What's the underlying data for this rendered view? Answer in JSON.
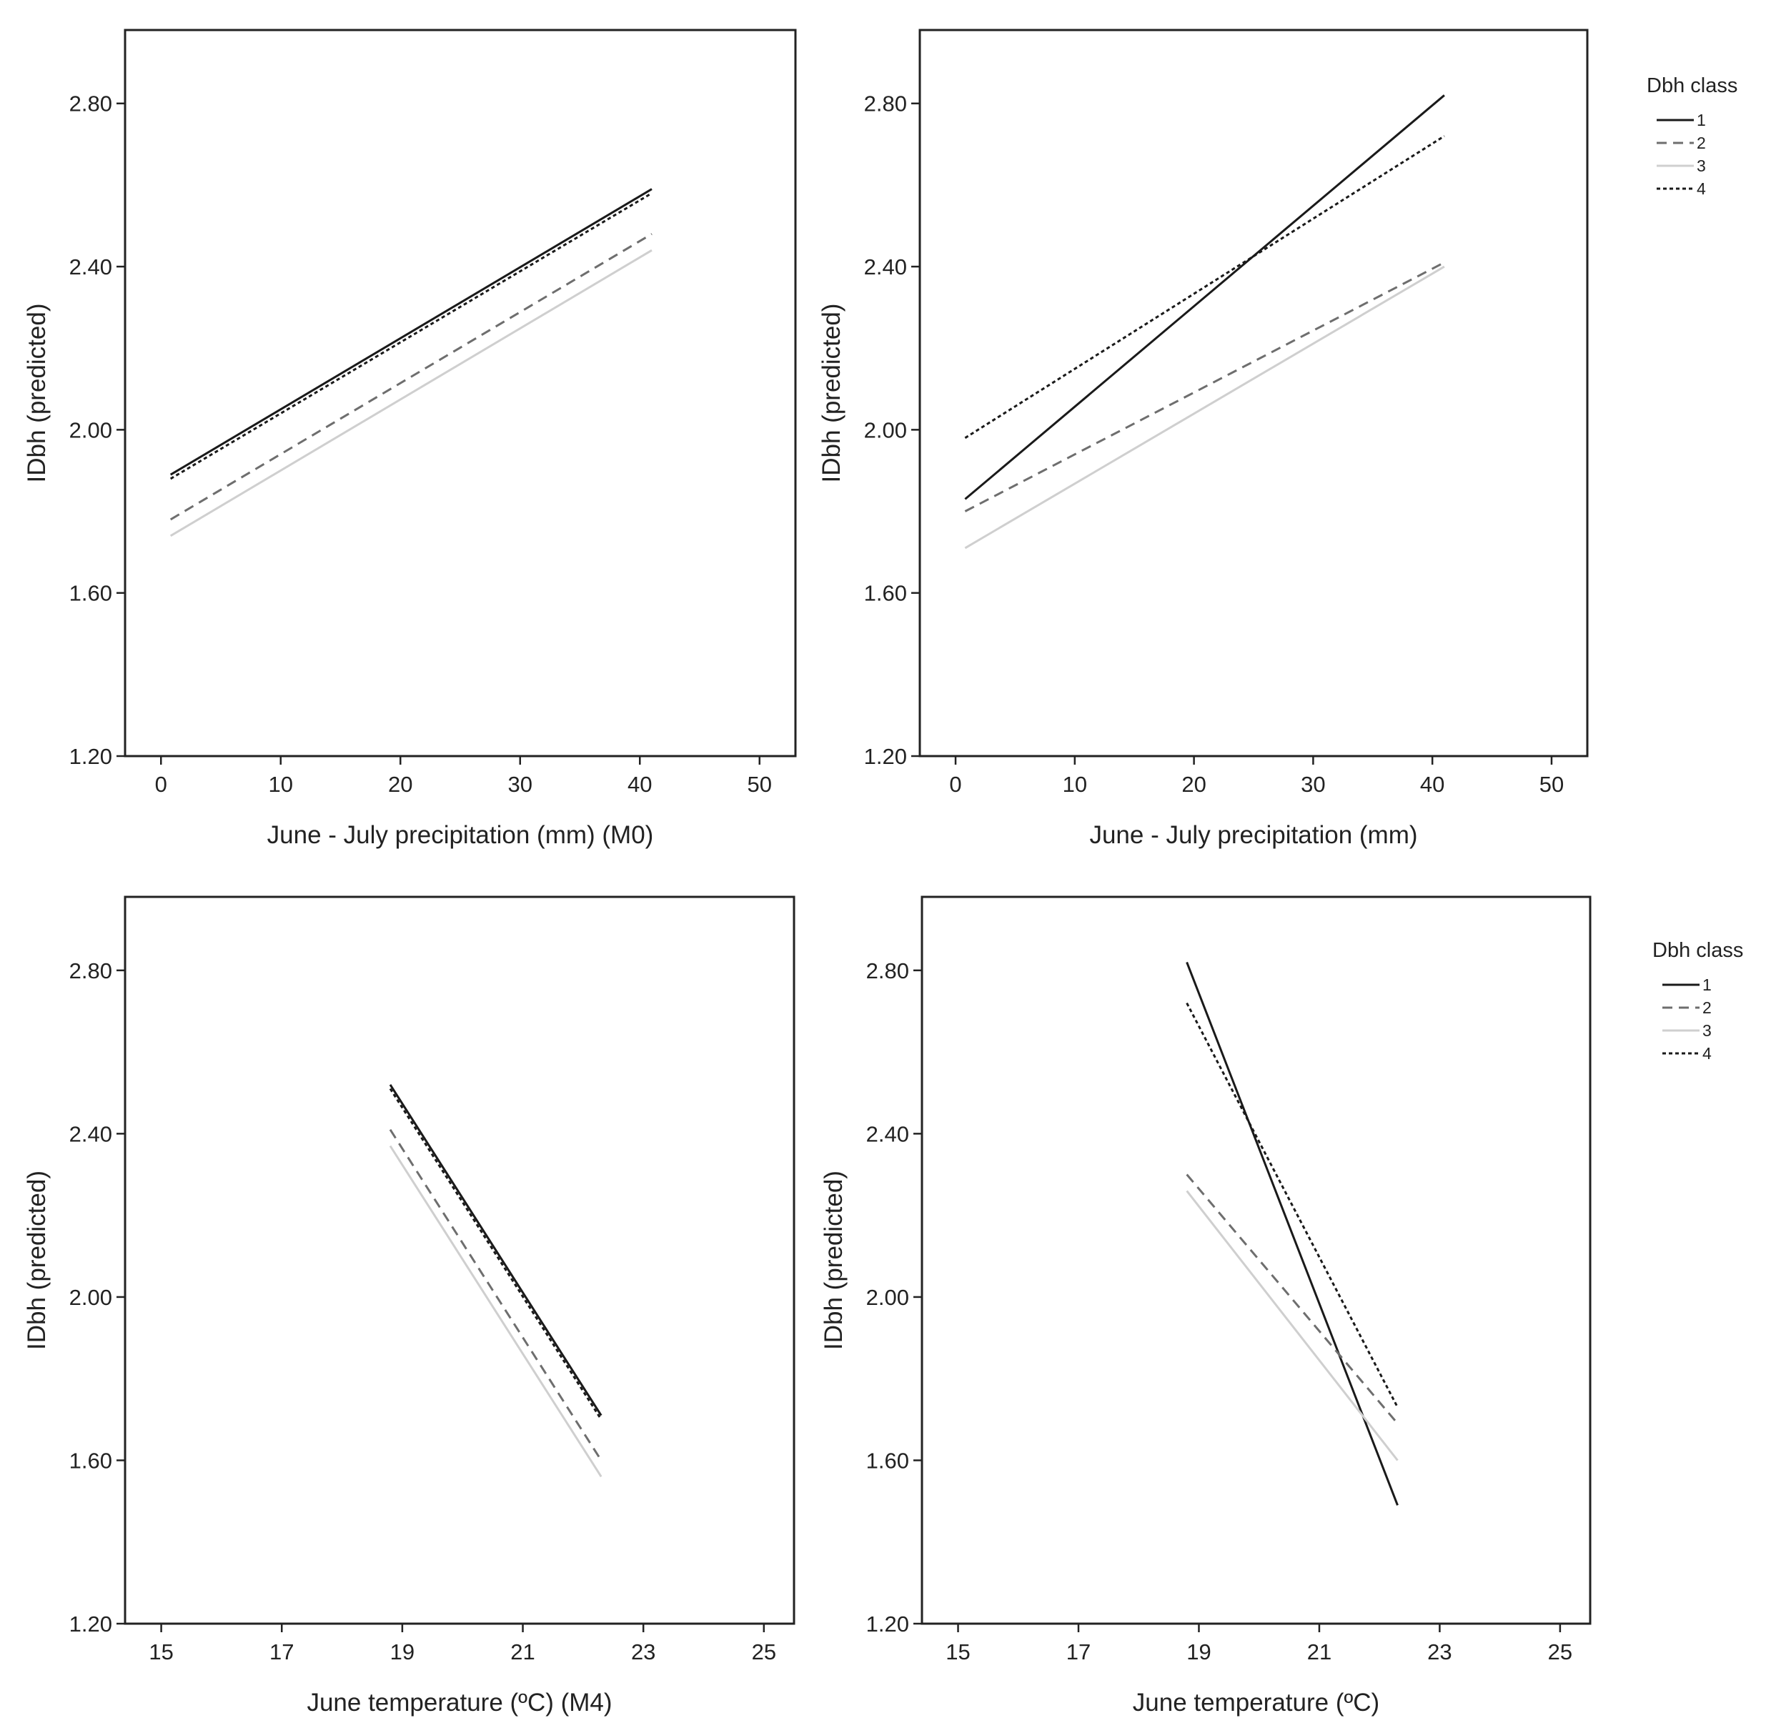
{
  "series_styles": [
    {
      "color": "#1a1a1a",
      "dash": "",
      "width": 3
    },
    {
      "color": "#6e6e6e",
      "dash": "14 9",
      "width": 3
    },
    {
      "color": "#cfcfcf",
      "dash": "",
      "width": 3
    },
    {
      "color": "#1a1a1a",
      "dash": "5 4",
      "width": 3
    }
  ],
  "legends": [
    {
      "panel": 1,
      "title": "Dbh class",
      "labels": [
        "1",
        "2",
        "3",
        "4"
      ]
    },
    {
      "panel": 3,
      "title": "Dbh class",
      "labels": [
        "1",
        "2",
        "3",
        "4"
      ]
    }
  ],
  "chart_data": [
    {
      "type": "line",
      "xlabel": "June - July precipitation (mm) (M0)",
      "ylabel": "IDbh (predicted)",
      "xlim": [
        -3,
        53
      ],
      "ylim": [
        1.2,
        2.98
      ],
      "xticks": [
        0,
        10,
        20,
        30,
        40,
        50
      ],
      "yticks": [
        1.2,
        1.6,
        2.0,
        2.4,
        2.8
      ],
      "yticklabels": [
        "1.20",
        "1.60",
        "2.00",
        "2.40",
        "2.80"
      ],
      "series": [
        {
          "name": "1",
          "x": [
            0.8,
            41
          ],
          "y": [
            1.89,
            2.59
          ]
        },
        {
          "name": "2",
          "x": [
            0.8,
            41
          ],
          "y": [
            1.78,
            2.48
          ]
        },
        {
          "name": "3",
          "x": [
            0.8,
            41
          ],
          "y": [
            1.74,
            2.44
          ]
        },
        {
          "name": "4",
          "x": [
            0.8,
            41
          ],
          "y": [
            1.88,
            2.58
          ]
        }
      ]
    },
    {
      "type": "line",
      "xlabel": "June - July precipitation (mm)",
      "ylabel": "IDbh (predicted)",
      "xlim": [
        -3,
        53
      ],
      "ylim": [
        1.2,
        2.98
      ],
      "xticks": [
        0,
        10,
        20,
        30,
        40,
        50
      ],
      "yticks": [
        1.2,
        1.6,
        2.0,
        2.4,
        2.8
      ],
      "yticklabels": [
        "1.20",
        "1.60",
        "2.00",
        "2.40",
        "2.80"
      ],
      "series": [
        {
          "name": "1",
          "x": [
            0.8,
            41
          ],
          "y": [
            1.83,
            2.82
          ]
        },
        {
          "name": "2",
          "x": [
            0.8,
            41
          ],
          "y": [
            1.8,
            2.41
          ]
        },
        {
          "name": "3",
          "x": [
            0.8,
            41
          ],
          "y": [
            1.71,
            2.4
          ]
        },
        {
          "name": "4",
          "x": [
            0.8,
            41
          ],
          "y": [
            1.98,
            2.72
          ]
        }
      ]
    },
    {
      "type": "line",
      "xlabel": "June temperature (ºC) (M4)",
      "ylabel": "IDbh (predicted)",
      "xlim": [
        14.4,
        25.5
      ],
      "ylim": [
        1.2,
        2.98
      ],
      "xticks": [
        15,
        17,
        19,
        21,
        23,
        25
      ],
      "yticks": [
        1.2,
        1.6,
        2.0,
        2.4,
        2.8
      ],
      "yticklabels": [
        "1.20",
        "1.60",
        "2.00",
        "2.40",
        "2.80"
      ],
      "series": [
        {
          "name": "1",
          "x": [
            18.8,
            22.3
          ],
          "y": [
            2.52,
            1.71
          ]
        },
        {
          "name": "2",
          "x": [
            18.8,
            22.3
          ],
          "y": [
            2.41,
            1.6
          ]
        },
        {
          "name": "3",
          "x": [
            18.8,
            22.3
          ],
          "y": [
            2.37,
            1.56
          ]
        },
        {
          "name": "4",
          "x": [
            18.8,
            22.3
          ],
          "y": [
            2.51,
            1.7
          ]
        }
      ]
    },
    {
      "type": "line",
      "xlabel": "June temperature (ºC)",
      "ylabel": "IDbh (predicted)",
      "xlim": [
        14.4,
        25.5
      ],
      "ylim": [
        1.2,
        2.98
      ],
      "xticks": [
        15,
        17,
        19,
        21,
        23,
        25
      ],
      "yticks": [
        1.2,
        1.6,
        2.0,
        2.4,
        2.8
      ],
      "yticklabels": [
        "1.20",
        "1.60",
        "2.00",
        "2.40",
        "2.80"
      ],
      "series": [
        {
          "name": "1",
          "x": [
            18.8,
            22.3
          ],
          "y": [
            2.82,
            1.49
          ]
        },
        {
          "name": "2",
          "x": [
            18.8,
            22.3
          ],
          "y": [
            2.3,
            1.69
          ]
        },
        {
          "name": "3",
          "x": [
            18.8,
            22.3
          ],
          "y": [
            2.26,
            1.6
          ]
        },
        {
          "name": "4",
          "x": [
            18.8,
            22.3
          ],
          "y": [
            2.72,
            1.73
          ]
        }
      ]
    }
  ]
}
